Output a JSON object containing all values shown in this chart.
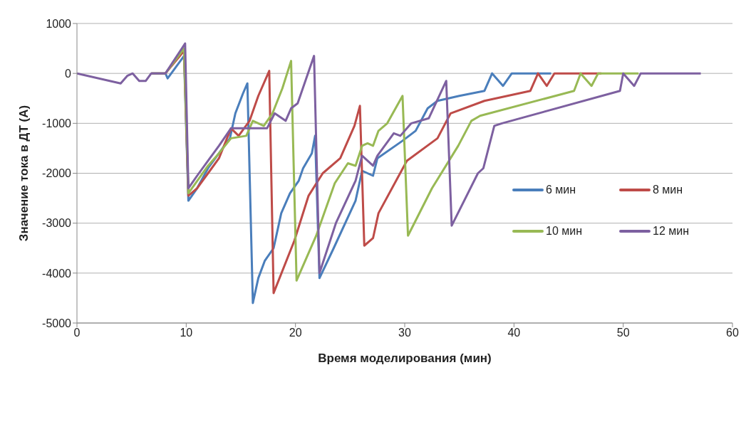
{
  "chart_data": {
    "type": "line",
    "xlabel": "Время моделирования (мин)",
    "ylabel": "Значение тока в ДТ (А)",
    "xlim": [
      0,
      60
    ],
    "xticks": [
      0,
      10,
      20,
      30,
      40,
      50,
      60
    ],
    "ylim": [
      -5000,
      1000
    ],
    "yticks": [
      -5000,
      -4000,
      -3000,
      -2000,
      -1000,
      0,
      1000
    ],
    "grid": "y",
    "legend": "right",
    "line_style": "solid",
    "marker": "none",
    "series": [
      {
        "name": "6 мин",
        "color": "#4a7ebb",
        "x": [
          6.8,
          8.1,
          8.3,
          9.8,
          10.2,
          11,
          12,
          13,
          14,
          14.5,
          15.2,
          15.6,
          16.1,
          16.6,
          17.2,
          18,
          18.7,
          19.5,
          20.3,
          20.7,
          21.5,
          21.8,
          22.2,
          23.5,
          25.5,
          26.1,
          27.1,
          27.5,
          29.8,
          31,
          32.1,
          33,
          35,
          37.3,
          38,
          39,
          39.8,
          43.4
        ],
        "values": [
          0,
          0,
          -100,
          350,
          -2550,
          -2300,
          -1900,
          -1600,
          -1300,
          -800,
          -400,
          -200,
          -4600,
          -4100,
          -3750,
          -3500,
          -2800,
          -2400,
          -2150,
          -1900,
          -1600,
          -1250,
          -4100,
          -3500,
          -2550,
          -1950,
          -2050,
          -1700,
          -1350,
          -1150,
          -700,
          -550,
          -450,
          -350,
          0,
          -250,
          0,
          0
        ]
      },
      {
        "name": "8 мин",
        "color": "#be4b48",
        "x": [
          6.8,
          8.1,
          9.8,
          10.2,
          11,
          12,
          13,
          14.1,
          14.8,
          15.8,
          16.6,
          17.6,
          18,
          19.9,
          21.2,
          22.5,
          24.1,
          25.4,
          25.9,
          26.3,
          27.1,
          27.6,
          30.2,
          33,
          34.2,
          37.3,
          41.5,
          42.2,
          43,
          43.7,
          48
        ],
        "values": [
          0,
          0,
          450,
          -2450,
          -2300,
          -2000,
          -1700,
          -1100,
          -1250,
          -950,
          -450,
          50,
          -4400,
          -3350,
          -2450,
          -2000,
          -1700,
          -1050,
          -650,
          -3450,
          -3300,
          -2800,
          -1750,
          -1300,
          -800,
          -550,
          -350,
          0,
          -250,
          0,
          0
        ]
      },
      {
        "name": "10 мин",
        "color": "#98b954",
        "x": [
          6.8,
          8.1,
          9.8,
          10.2,
          12,
          13,
          14.1,
          15.5,
          16.1,
          17.1,
          17.9,
          18.8,
          19.6,
          20.1,
          21.9,
          23.6,
          24.8,
          25.5,
          26.1,
          26.6,
          27.1,
          27.6,
          28.4,
          29.8,
          30.3,
          32.5,
          34.9,
          36.1,
          36.9,
          45.5,
          46.1,
          47.1,
          47.7,
          51.4
        ],
        "values": [
          0,
          0,
          500,
          -2400,
          -1850,
          -1600,
          -1300,
          -1250,
          -950,
          -1050,
          -800,
          -300,
          250,
          -4150,
          -3250,
          -2200,
          -1800,
          -1850,
          -1450,
          -1400,
          -1450,
          -1150,
          -1000,
          -450,
          -3250,
          -2300,
          -1450,
          -950,
          -850,
          -350,
          0,
          -250,
          0,
          0
        ]
      },
      {
        "name": "12 мин",
        "color": "#7d60a0",
        "x": [
          0,
          4,
          4.6,
          5.1,
          5.7,
          6.3,
          6.8,
          8.1,
          9.9,
          10.2,
          11,
          12,
          13,
          14.1,
          15,
          17.4,
          18.1,
          19.1,
          19.6,
          20.2,
          21.7,
          22.2,
          23.7,
          25.5,
          26.1,
          27.1,
          27.5,
          28,
          29,
          29.6,
          30.6,
          32.2,
          33.8,
          34.3,
          36.7,
          37.2,
          38.2,
          38.9,
          49.7,
          50,
          51,
          51.6,
          57.1
        ],
        "values": [
          0,
          -200,
          -50,
          0,
          -150,
          -150,
          0,
          0,
          600,
          -2300,
          -2050,
          -1750,
          -1450,
          -1100,
          -1100,
          -1100,
          -800,
          -950,
          -700,
          -600,
          350,
          -4000,
          -3000,
          -2150,
          -1650,
          -1850,
          -1650,
          -1500,
          -1200,
          -1250,
          -1000,
          -900,
          -150,
          -3050,
          -2000,
          -1900,
          -1050,
          -1000,
          -350,
          0,
          -250,
          0,
          0
        ]
      }
    ]
  }
}
